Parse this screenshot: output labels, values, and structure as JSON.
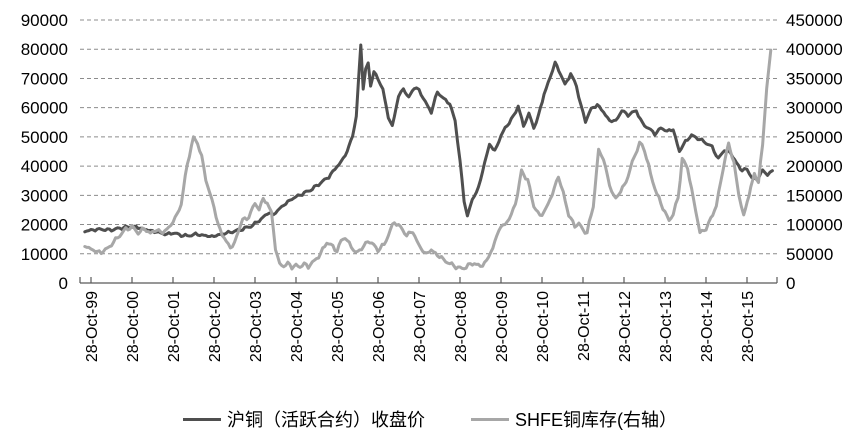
{
  "chart_data": {
    "type": "line",
    "title": "",
    "grid": "horizontal-dashed",
    "legend_position": "bottom",
    "colors": {
      "grid_line": "#8c8c8c",
      "axis_line": "#595959",
      "tick_text": "#000000",
      "price_line": "#4f4f4f",
      "inventory_line": "#a7a7a7"
    },
    "x_axis": {
      "tick_labels": [
        "28-Oct-99",
        "28-Oct-00",
        "28-Oct-01",
        "28-Oct-02",
        "28-Oct-03",
        "28-Oct-04",
        "28-Oct-05",
        "28-Oct-06",
        "28-Oct-07",
        "28-Oct-08",
        "28-Oct-09",
        "28-Oct-10",
        "28-Oct-11",
        "28-Oct-12",
        "28-Oct-13",
        "28-Oct-14",
        "28-Oct-15"
      ]
    },
    "y_axis_left": {
      "min": 0,
      "max": 90000,
      "step": 10000,
      "tick_labels": [
        "90000",
        "80000",
        "70000",
        "60000",
        "50000",
        "40000",
        "30000",
        "20000",
        "10000",
        "0"
      ]
    },
    "y_axis_right": {
      "min": 0,
      "max": 450000,
      "step": 50000,
      "tick_labels": [
        "450000",
        "400000",
        "350000",
        "300000",
        "250000",
        "200000",
        "150000",
        "100000",
        "50000",
        "0"
      ]
    },
    "series": [
      {
        "name": "沪铜（活跃合约）收盘价",
        "axis": "left",
        "color": "#4f4f4f",
        "line_width": 3,
        "x_unit": "years_since_28_Oct_1999",
        "points": [
          [
            -0.15,
            17700
          ],
          [
            0.05,
            18200
          ],
          [
            0.25,
            18400
          ],
          [
            0.45,
            18100
          ],
          [
            0.65,
            18600
          ],
          [
            0.85,
            19100
          ],
          [
            1.05,
            19300
          ],
          [
            1.25,
            18600
          ],
          [
            1.45,
            17900
          ],
          [
            1.65,
            17300
          ],
          [
            1.85,
            16600
          ],
          [
            2.0,
            17200
          ],
          [
            2.15,
            16500
          ],
          [
            2.35,
            16100
          ],
          [
            2.55,
            16700
          ],
          [
            2.75,
            16300
          ],
          [
            2.95,
            15900
          ],
          [
            3.1,
            16400
          ],
          [
            3.3,
            17100
          ],
          [
            3.5,
            17700
          ],
          [
            3.7,
            18500
          ],
          [
            3.9,
            19400
          ],
          [
            4.05,
            20800
          ],
          [
            4.2,
            22500
          ],
          [
            4.35,
            24200
          ],
          [
            4.45,
            23300
          ],
          [
            4.6,
            25500
          ],
          [
            4.75,
            27200
          ],
          [
            4.9,
            28800
          ],
          [
            5.05,
            29800
          ],
          [
            5.2,
            30800
          ],
          [
            5.35,
            31800
          ],
          [
            5.5,
            33200
          ],
          [
            5.65,
            34800
          ],
          [
            5.8,
            36300
          ],
          [
            5.95,
            39000
          ],
          [
            6.1,
            41500
          ],
          [
            6.25,
            45000
          ],
          [
            6.38,
            50500
          ],
          [
            6.47,
            57000
          ],
          [
            6.58,
            81500
          ],
          [
            6.64,
            66500
          ],
          [
            6.7,
            73000
          ],
          [
            6.76,
            75500
          ],
          [
            6.82,
            67500
          ],
          [
            6.9,
            72000
          ],
          [
            7.0,
            70000
          ],
          [
            7.12,
            66000
          ],
          [
            7.25,
            57000
          ],
          [
            7.35,
            53500
          ],
          [
            7.5,
            64000
          ],
          [
            7.62,
            66500
          ],
          [
            7.75,
            63500
          ],
          [
            7.88,
            67000
          ],
          [
            8.0,
            66000
          ],
          [
            8.15,
            62000
          ],
          [
            8.3,
            58500
          ],
          [
            8.45,
            65500
          ],
          [
            8.6,
            63000
          ],
          [
            8.75,
            61500
          ],
          [
            8.88,
            55500
          ],
          [
            9.0,
            42000
          ],
          [
            9.1,
            28000
          ],
          [
            9.18,
            23000
          ],
          [
            9.3,
            28500
          ],
          [
            9.45,
            32500
          ],
          [
            9.6,
            41000
          ],
          [
            9.72,
            47500
          ],
          [
            9.85,
            45000
          ],
          [
            10.0,
            50500
          ],
          [
            10.15,
            54000
          ],
          [
            10.3,
            57000
          ],
          [
            10.42,
            60500
          ],
          [
            10.55,
            53500
          ],
          [
            10.68,
            58000
          ],
          [
            10.8,
            53000
          ],
          [
            10.92,
            57500
          ],
          [
            11.05,
            64500
          ],
          [
            11.2,
            70500
          ],
          [
            11.32,
            75500
          ],
          [
            11.45,
            71500
          ],
          [
            11.56,
            68000
          ],
          [
            11.7,
            71500
          ],
          [
            11.84,
            67500
          ],
          [
            11.95,
            60500
          ],
          [
            12.06,
            55500
          ],
          [
            12.2,
            59500
          ],
          [
            12.35,
            61000
          ],
          [
            12.5,
            58500
          ],
          [
            12.65,
            55500
          ],
          [
            12.8,
            55500
          ],
          [
            12.95,
            59000
          ],
          [
            13.1,
            57500
          ],
          [
            13.3,
            59000
          ],
          [
            13.45,
            54500
          ],
          [
            13.6,
            53000
          ],
          [
            13.75,
            51000
          ],
          [
            13.9,
            53000
          ],
          [
            14.05,
            52000
          ],
          [
            14.2,
            52500
          ],
          [
            14.35,
            45000
          ],
          [
            14.5,
            48500
          ],
          [
            14.65,
            50500
          ],
          [
            14.8,
            49500
          ],
          [
            15.0,
            48000
          ],
          [
            15.15,
            46500
          ],
          [
            15.3,
            42500
          ],
          [
            15.45,
            45500
          ],
          [
            15.6,
            44500
          ],
          [
            15.75,
            41000
          ],
          [
            15.88,
            38500
          ],
          [
            16.0,
            39000
          ],
          [
            16.12,
            36000
          ],
          [
            16.25,
            35500
          ],
          [
            16.38,
            38500
          ],
          [
            16.5,
            37000
          ],
          [
            16.62,
            38500
          ]
        ]
      },
      {
        "name": "SHFE铜库存(右轴）",
        "axis": "right",
        "color": "#a7a7a7",
        "line_width": 3,
        "x_unit": "years_since_28_Oct_1999",
        "points": [
          [
            -0.15,
            64000
          ],
          [
            0.05,
            56000
          ],
          [
            0.25,
            52000
          ],
          [
            0.45,
            62000
          ],
          [
            0.65,
            78000
          ],
          [
            0.85,
            92000
          ],
          [
            1.0,
            96000
          ],
          [
            1.15,
            86000
          ],
          [
            1.3,
            93000
          ],
          [
            1.45,
            85000
          ],
          [
            1.6,
            91000
          ],
          [
            1.75,
            86000
          ],
          [
            1.9,
            95000
          ],
          [
            2.05,
            110000
          ],
          [
            2.2,
            135000
          ],
          [
            2.35,
            205000
          ],
          [
            2.5,
            248000
          ],
          [
            2.6,
            240000
          ],
          [
            2.7,
            215000
          ],
          [
            2.8,
            178000
          ],
          [
            2.9,
            153000
          ],
          [
            3.0,
            130000
          ],
          [
            3.1,
            100000
          ],
          [
            3.2,
            82000
          ],
          [
            3.3,
            72000
          ],
          [
            3.4,
            60000
          ],
          [
            3.5,
            68000
          ],
          [
            3.6,
            90000
          ],
          [
            3.7,
            110000
          ],
          [
            3.8,
            108000
          ],
          [
            3.9,
            122000
          ],
          [
            4.0,
            135000
          ],
          [
            4.1,
            128000
          ],
          [
            4.2,
            142000
          ],
          [
            4.3,
            138000
          ],
          [
            4.4,
            120000
          ],
          [
            4.5,
            60000
          ],
          [
            4.6,
            32000
          ],
          [
            4.7,
            28000
          ],
          [
            4.8,
            35000
          ],
          [
            4.9,
            26000
          ],
          [
            5.0,
            31000
          ],
          [
            5.1,
            27000
          ],
          [
            5.2,
            33000
          ],
          [
            5.3,
            28000
          ],
          [
            5.45,
            38000
          ],
          [
            5.6,
            50000
          ],
          [
            5.75,
            70000
          ],
          [
            5.9,
            62000
          ],
          [
            6.0,
            55000
          ],
          [
            6.1,
            72000
          ],
          [
            6.2,
            78000
          ],
          [
            6.35,
            62000
          ],
          [
            6.45,
            52000
          ],
          [
            6.6,
            58000
          ],
          [
            6.75,
            72000
          ],
          [
            6.9,
            65000
          ],
          [
            7.0,
            56000
          ],
          [
            7.15,
            66000
          ],
          [
            7.3,
            90000
          ],
          [
            7.4,
            105000
          ],
          [
            7.55,
            95000
          ],
          [
            7.7,
            82000
          ],
          [
            7.85,
            88000
          ],
          [
            8.0,
            64000
          ],
          [
            8.15,
            50000
          ],
          [
            8.3,
            56000
          ],
          [
            8.45,
            48000
          ],
          [
            8.6,
            40000
          ],
          [
            8.75,
            33000
          ],
          [
            8.9,
            28000
          ],
          [
            9.05,
            24000
          ],
          [
            9.2,
            30000
          ],
          [
            9.35,
            34000
          ],
          [
            9.5,
            28000
          ],
          [
            9.65,
            38000
          ],
          [
            9.8,
            60000
          ],
          [
            9.95,
            92000
          ],
          [
            10.1,
            101000
          ],
          [
            10.25,
            115000
          ],
          [
            10.4,
            150000
          ],
          [
            10.5,
            192000
          ],
          [
            10.65,
            176000
          ],
          [
            10.8,
            132000
          ],
          [
            10.95,
            114000
          ],
          [
            11.1,
            127000
          ],
          [
            11.25,
            152000
          ],
          [
            11.4,
            183000
          ],
          [
            11.52,
            153000
          ],
          [
            11.65,
            116000
          ],
          [
            11.8,
            98000
          ],
          [
            11.9,
            101000
          ],
          [
            12.0,
            91000
          ],
          [
            12.1,
            86000
          ],
          [
            12.25,
            132000
          ],
          [
            12.38,
            228000
          ],
          [
            12.5,
            213000
          ],
          [
            12.65,
            166000
          ],
          [
            12.8,
            143000
          ],
          [
            12.92,
            159000
          ],
          [
            13.05,
            172000
          ],
          [
            13.2,
            206000
          ],
          [
            13.38,
            240000
          ],
          [
            13.5,
            228000
          ],
          [
            13.65,
            186000
          ],
          [
            13.8,
            152000
          ],
          [
            13.95,
            129000
          ],
          [
            14.1,
            106000
          ],
          [
            14.2,
            119000
          ],
          [
            14.32,
            146000
          ],
          [
            14.42,
            212000
          ],
          [
            14.55,
            196000
          ],
          [
            14.7,
            142000
          ],
          [
            14.85,
            86000
          ],
          [
            15.0,
            93000
          ],
          [
            15.12,
            110000
          ],
          [
            15.25,
            132000
          ],
          [
            15.42,
            196000
          ],
          [
            15.55,
            238000
          ],
          [
            15.68,
            206000
          ],
          [
            15.8,
            152000
          ],
          [
            15.92,
            113000
          ],
          [
            16.05,
            152000
          ],
          [
            16.18,
            186000
          ],
          [
            16.28,
            174000
          ],
          [
            16.38,
            235000
          ],
          [
            16.48,
            335000
          ],
          [
            16.58,
            395000
          ]
        ]
      }
    ]
  }
}
